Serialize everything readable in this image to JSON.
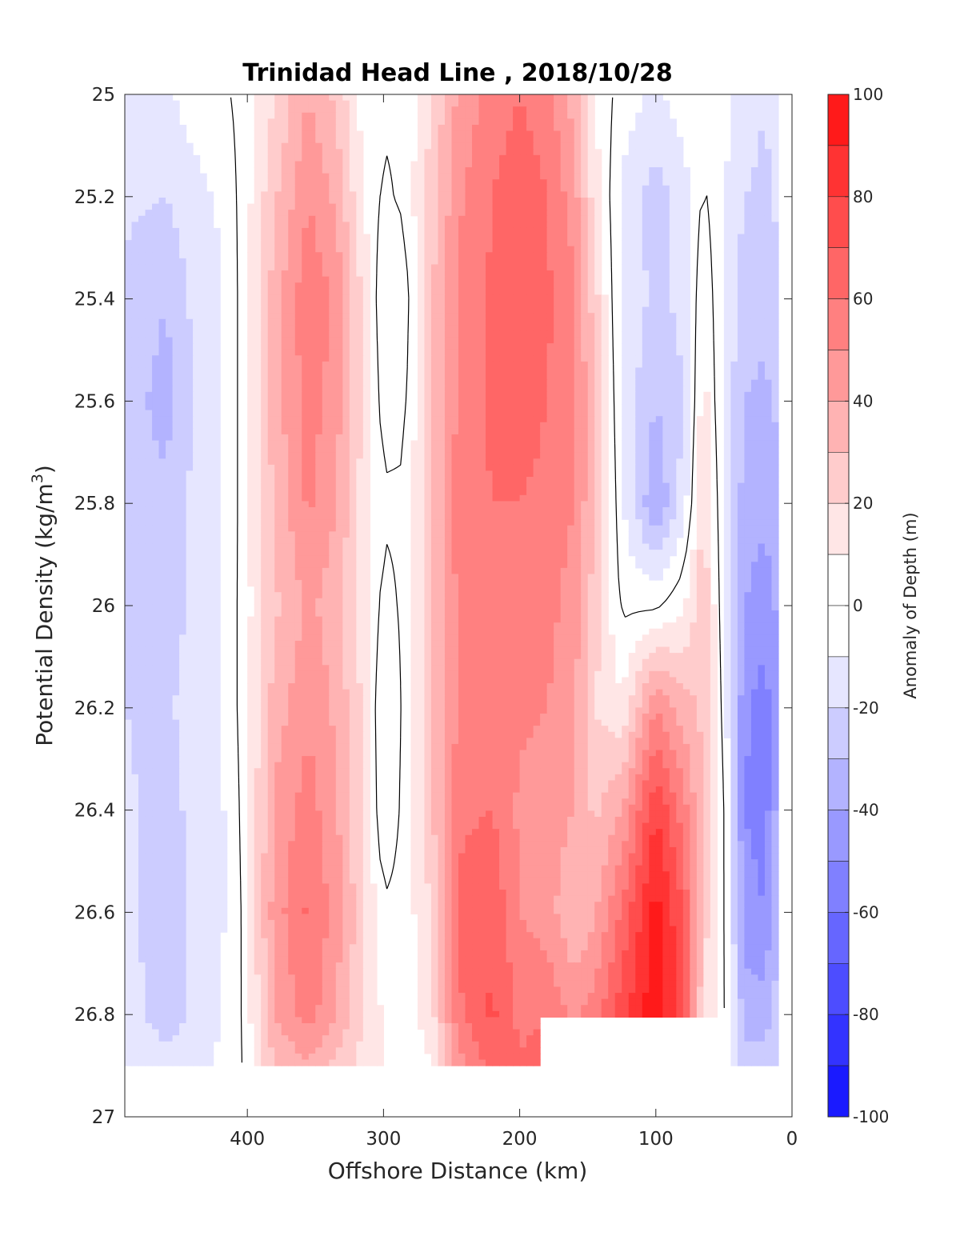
{
  "chart_data": {
    "type": "heatmap",
    "subtype": "filled-contour",
    "title": "Trinidad Head Line , 2018/10/28",
    "xlabel": "Offshore Distance (km)",
    "ylabel_main": "Potential Density (kg/m",
    "ylabel_sup": "3",
    "ylabel_close": ")",
    "colorbar_label": "Anomaly of Depth (m)",
    "xlim": [
      490,
      0
    ],
    "x_reversed": true,
    "ylim": [
      25,
      27
    ],
    "y_reversed": true,
    "x_ticks": [
      400,
      300,
      200,
      100,
      0
    ],
    "y_ticks": [
      "25",
      "25.2",
      "25.4",
      "25.6",
      "25.8",
      "26",
      "26.2",
      "26.4",
      "26.6",
      "26.8",
      "27"
    ],
    "y_tick_values": [
      25,
      25.2,
      25.4,
      25.6,
      25.8,
      26,
      26.2,
      26.4,
      26.6,
      26.8,
      27
    ],
    "colorbar_ticks": [
      100,
      80,
      60,
      40,
      20,
      0,
      -20,
      -40,
      -60,
      -80,
      -100
    ],
    "colorbar_range": [
      -100,
      100
    ],
    "contour_step": 10,
    "zero_contour_color": "#000000",
    "data_extent": {
      "x": [
        490,
        10
      ],
      "y_top": 25,
      "y_bottom": 26.9
    },
    "blank_notches_at_bottom": [
      {
        "x": [
          185,
          130
        ],
        "from_y": 26.8
      },
      {
        "x": [
          130,
          55
        ],
        "from_y": 26.8
      }
    ],
    "columns": [
      {
        "x": 490,
        "values": [
          -15,
          -18,
          -22,
          -25,
          -25,
          -22,
          -20,
          -18,
          -16,
          -14,
          -12
        ]
      },
      {
        "x": 460,
        "values": [
          -12,
          -20,
          -30,
          -34,
          -28,
          -25,
          -22,
          -25,
          -28,
          -26,
          -15
        ]
      },
      {
        "x": 440,
        "values": [
          -5,
          -14,
          -18,
          -20,
          -18,
          -18,
          -16,
          -17,
          -18,
          -18,
          -15
        ]
      },
      {
        "x": 420,
        "values": [
          -2,
          -8,
          -12,
          -12,
          -12,
          -10,
          -10,
          -12,
          -12,
          -10,
          -8
        ]
      },
      {
        "x": 405,
        "values": [
          2,
          2,
          2,
          2,
          2,
          2,
          2,
          0,
          -2,
          -2,
          -2
        ]
      },
      {
        "x": 380,
        "values": [
          20,
          28,
          35,
          35,
          32,
          28,
          35,
          42,
          45,
          40,
          30
        ]
      },
      {
        "x": 355,
        "values": [
          40,
          50,
          58,
          55,
          52,
          42,
          48,
          55,
          62,
          55,
          38
        ]
      },
      {
        "x": 335,
        "values": [
          28,
          38,
          48,
          45,
          40,
          35,
          38,
          42,
          45,
          40,
          28
        ]
      },
      {
        "x": 315,
        "values": [
          5,
          10,
          18,
          18,
          16,
          16,
          18,
          20,
          22,
          22,
          15
        ]
      },
      {
        "x": 300,
        "values": [
          2,
          -2,
          -10,
          -5,
          2,
          -4,
          -12,
          -10,
          2,
          8,
          10
        ]
      },
      {
        "x": 285,
        "values": [
          2,
          2,
          -6,
          -3,
          2,
          2,
          2,
          3,
          4,
          5,
          3
        ]
      },
      {
        "x": 265,
        "values": [
          20,
          25,
          28,
          28,
          30,
          30,
          30,
          28,
          20,
          15,
          10
        ]
      },
      {
        "x": 245,
        "values": [
          42,
          48,
          52,
          52,
          55,
          52,
          50,
          58,
          62,
          58,
          45
        ]
      },
      {
        "x": 220,
        "values": [
          55,
          60,
          62,
          62,
          60,
          56,
          54,
          60,
          68,
          72,
          65
        ]
      },
      {
        "x": 200,
        "values": [
          60,
          66,
          68,
          64,
          60,
          56,
          52,
          48,
          50,
          58,
          60
        ]
      },
      {
        "x": 180,
        "values": [
          55,
          60,
          62,
          60,
          58,
          54,
          50,
          46,
          45,
          58,
          70
        ]
      },
      {
        "x": 160,
        "values": [
          35,
          45,
          52,
          52,
          50,
          45,
          42,
          40,
          30,
          48,
          72
        ]
      },
      {
        "x": 145,
        "values": [
          10,
          15,
          25,
          30,
          30,
          25,
          20,
          28,
          38,
          55,
          75
        ]
      },
      {
        "x": 125,
        "values": [
          -5,
          -12,
          -14,
          -12,
          -8,
          -2,
          12,
          40,
          62,
          75,
          80
        ]
      },
      {
        "x": 100,
        "values": [
          -12,
          -25,
          -22,
          -30,
          -40,
          -2,
          50,
          80,
          95,
          98,
          90
        ]
      },
      {
        "x": 80,
        "values": [
          -5,
          -15,
          -18,
          -20,
          -16,
          8,
          35,
          55,
          70,
          75,
          65
        ]
      },
      {
        "x": 65,
        "values": [
          -2,
          2,
          10,
          15,
          22,
          28,
          28,
          28,
          25,
          20,
          10
        ]
      },
      {
        "x": 50,
        "values": [
          -5,
          -10,
          -12,
          -12,
          -10,
          -8,
          -4,
          2,
          2,
          2,
          0
        ]
      },
      {
        "x": 35,
        "values": [
          -15,
          -20,
          -25,
          -30,
          -35,
          -40,
          -48,
          -50,
          -45,
          -35,
          -25
        ]
      },
      {
        "x": 20,
        "values": [
          -20,
          -22,
          -28,
          -32,
          -38,
          -45,
          -55,
          -55,
          -50,
          -35,
          -25
        ]
      },
      {
        "x": 10,
        "values": [
          -15,
          -18,
          -22,
          -28,
          -32,
          -38,
          -40,
          -35,
          -30,
          -25,
          -20
        ]
      }
    ],
    "column_y_levels": [
      25,
      25.2,
      25.4,
      25.6,
      25.8,
      26,
      26.2,
      26.4,
      26.6,
      26.8,
      26.9
    ]
  }
}
